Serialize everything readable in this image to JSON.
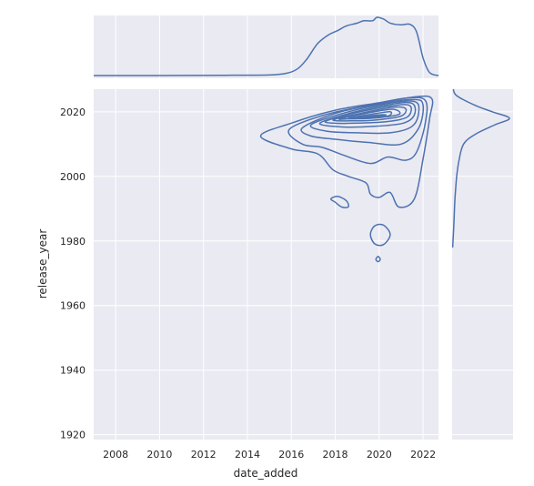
{
  "chart_data": {
    "type": "kde-joint",
    "title": "",
    "xlabel": "date_added",
    "ylabel": "release_year",
    "xlim": [
      2007.0,
      2022.7
    ],
    "ylim": [
      1918.5,
      2027.0
    ],
    "x_ticks": [
      2008,
      2010,
      2012,
      2014,
      2016,
      2018,
      2020,
      2022
    ],
    "y_ticks": [
      1920,
      1940,
      1960,
      1980,
      2000,
      2020
    ],
    "grid": true,
    "colors": {
      "line": "#4c72b0",
      "panel": "#eaeaf2",
      "grid": "#ffffff"
    },
    "contours": [
      [
        [
          2014.6,
          2012.5
        ],
        [
          2016.0,
          2016.5
        ],
        [
          2018.0,
          2020.5
        ],
        [
          2020.0,
          2022.8
        ],
        [
          2021.7,
          2024.7
        ],
        [
          2022.4,
          2024.0
        ],
        [
          2022.3,
          2018.0
        ],
        [
          2022.0,
          2005.5
        ],
        [
          2021.6,
          1993.0
        ],
        [
          2020.9,
          1990.5
        ],
        [
          2020.5,
          1995.0
        ],
        [
          2020.0,
          1993.5
        ],
        [
          2019.6,
          1994.5
        ],
        [
          2019.4,
          1998.0
        ],
        [
          2018.6,
          2000.0
        ],
        [
          2017.9,
          2002.0
        ],
        [
          2017.2,
          2007.0
        ],
        [
          2016.0,
          2008.5
        ],
        [
          2014.6,
          2012.5
        ]
      ],
      [
        [
          2015.9,
          2014.5
        ],
        [
          2017.5,
          2019.0
        ],
        [
          2019.5,
          2022.0
        ],
        [
          2021.2,
          2024.2
        ],
        [
          2022.1,
          2023.5
        ],
        [
          2022.1,
          2016.5
        ],
        [
          2021.7,
          2007.5
        ],
        [
          2021.2,
          2005.0
        ],
        [
          2020.4,
          2006.0
        ],
        [
          2019.6,
          2004.0
        ],
        [
          2018.4,
          2006.5
        ],
        [
          2017.4,
          2009.0
        ],
        [
          2016.5,
          2010.0
        ],
        [
          2015.9,
          2014.5
        ]
      ],
      [
        [
          2016.5,
          2015.0
        ],
        [
          2018.0,
          2019.5
        ],
        [
          2020.0,
          2022.5
        ],
        [
          2021.6,
          2023.8
        ],
        [
          2022.0,
          2022.0
        ],
        [
          2021.8,
          2015.0
        ],
        [
          2021.0,
          2010.0
        ],
        [
          2019.5,
          2010.5
        ],
        [
          2018.0,
          2011.5
        ],
        [
          2016.9,
          2012.5
        ],
        [
          2016.5,
          2015.0
        ]
      ],
      [
        [
          2016.9,
          2016.0
        ],
        [
          2018.5,
          2019.8
        ],
        [
          2020.3,
          2022.5
        ],
        [
          2021.6,
          2023.2
        ],
        [
          2021.8,
          2020.0
        ],
        [
          2021.5,
          2015.5
        ],
        [
          2020.5,
          2013.5
        ],
        [
          2019.0,
          2013.5
        ],
        [
          2017.6,
          2014.0
        ],
        [
          2016.9,
          2016.0
        ]
      ],
      [
        [
          2017.3,
          2016.5
        ],
        [
          2018.8,
          2019.8
        ],
        [
          2020.5,
          2022.3
        ],
        [
          2021.5,
          2022.6
        ],
        [
          2021.6,
          2019.0
        ],
        [
          2021.1,
          2016.5
        ],
        [
          2019.8,
          2015.5
        ],
        [
          2018.3,
          2015.3
        ],
        [
          2017.3,
          2016.5
        ]
      ],
      [
        [
          2017.6,
          2017.2
        ],
        [
          2019.0,
          2019.8
        ],
        [
          2020.6,
          2021.9
        ],
        [
          2021.4,
          2021.9
        ],
        [
          2021.3,
          2018.5
        ],
        [
          2020.4,
          2017.0
        ],
        [
          2019.0,
          2016.5
        ],
        [
          2017.9,
          2016.5
        ],
        [
          2017.6,
          2017.2
        ]
      ],
      [
        [
          2017.9,
          2017.5
        ],
        [
          2019.2,
          2019.6
        ],
        [
          2020.6,
          2021.4
        ],
        [
          2021.2,
          2021.0
        ],
        [
          2021.0,
          2018.7
        ],
        [
          2019.9,
          2017.5
        ],
        [
          2018.8,
          2017.2
        ],
        [
          2017.9,
          2017.5
        ]
      ],
      [
        [
          2018.2,
          2017.8
        ],
        [
          2019.4,
          2019.5
        ],
        [
          2020.6,
          2020.8
        ],
        [
          2020.9,
          2019.2
        ],
        [
          2019.7,
          2018.0
        ],
        [
          2018.6,
          2017.8
        ],
        [
          2018.2,
          2017.8
        ]
      ],
      [
        [
          2018.6,
          2018.0
        ],
        [
          2019.7,
          2019.3
        ],
        [
          2020.5,
          2020.0
        ],
        [
          2020.4,
          2018.7
        ],
        [
          2019.5,
          2018.2
        ],
        [
          2018.6,
          2018.0
        ]
      ],
      [
        [
          2019.0,
          2018.2
        ],
        [
          2019.9,
          2019.0
        ],
        [
          2020.3,
          2019.0
        ],
        [
          2019.6,
          2018.4
        ],
        [
          2019.0,
          2018.2
        ]
      ],
      [
        [
          2018.0,
          1992.0
        ],
        [
          2018.3,
          1990.5
        ],
        [
          2018.6,
          1990.6
        ],
        [
          2018.5,
          1992.5
        ],
        [
          2018.1,
          1993.8
        ],
        [
          2017.8,
          1993.0
        ],
        [
          2018.0,
          1992.0
        ]
      ],
      [
        [
          2019.6,
          1982.0
        ],
        [
          2019.8,
          1984.7
        ],
        [
          2020.2,
          1984.9
        ],
        [
          2020.5,
          1982.0
        ],
        [
          2020.2,
          1978.9
        ],
        [
          2019.8,
          1979.1
        ],
        [
          2019.6,
          1982.0
        ]
      ],
      [
        [
          2019.85,
          1974.3
        ],
        [
          2019.95,
          1975.2
        ],
        [
          2020.05,
          1974.3
        ],
        [
          2019.95,
          1973.6
        ],
        [
          2019.85,
          1974.3
        ]
      ]
    ],
    "marginal_x": {
      "x": [
        2007.0,
        2010.0,
        2013.0,
        2015.0,
        2015.8,
        2016.3,
        2016.7,
        2017.2,
        2017.7,
        2018.1,
        2018.5,
        2019.0,
        2019.3,
        2019.7,
        2019.9,
        2020.2,
        2020.5,
        2021.0,
        2021.4,
        2021.7,
        2022.0,
        2022.3,
        2022.7
      ],
      "density": [
        0.0,
        0.0,
        0.005,
        0.01,
        0.04,
        0.12,
        0.28,
        0.55,
        0.7,
        0.77,
        0.85,
        0.9,
        0.94,
        0.94,
        1.0,
        0.97,
        0.9,
        0.87,
        0.88,
        0.75,
        0.3,
        0.05,
        0.0
      ]
    },
    "marginal_y": {
      "y": [
        2027.0,
        2025.0,
        2022.0,
        2020.0,
        2018.0,
        2016.0,
        2013.0,
        2010.0,
        2005.0,
        2000.0,
        1993.0,
        1985.0,
        1978.0
      ],
      "density": [
        0.02,
        0.08,
        0.4,
        0.7,
        1.0,
        0.75,
        0.4,
        0.2,
        0.12,
        0.08,
        0.05,
        0.03,
        0.01
      ]
    }
  }
}
